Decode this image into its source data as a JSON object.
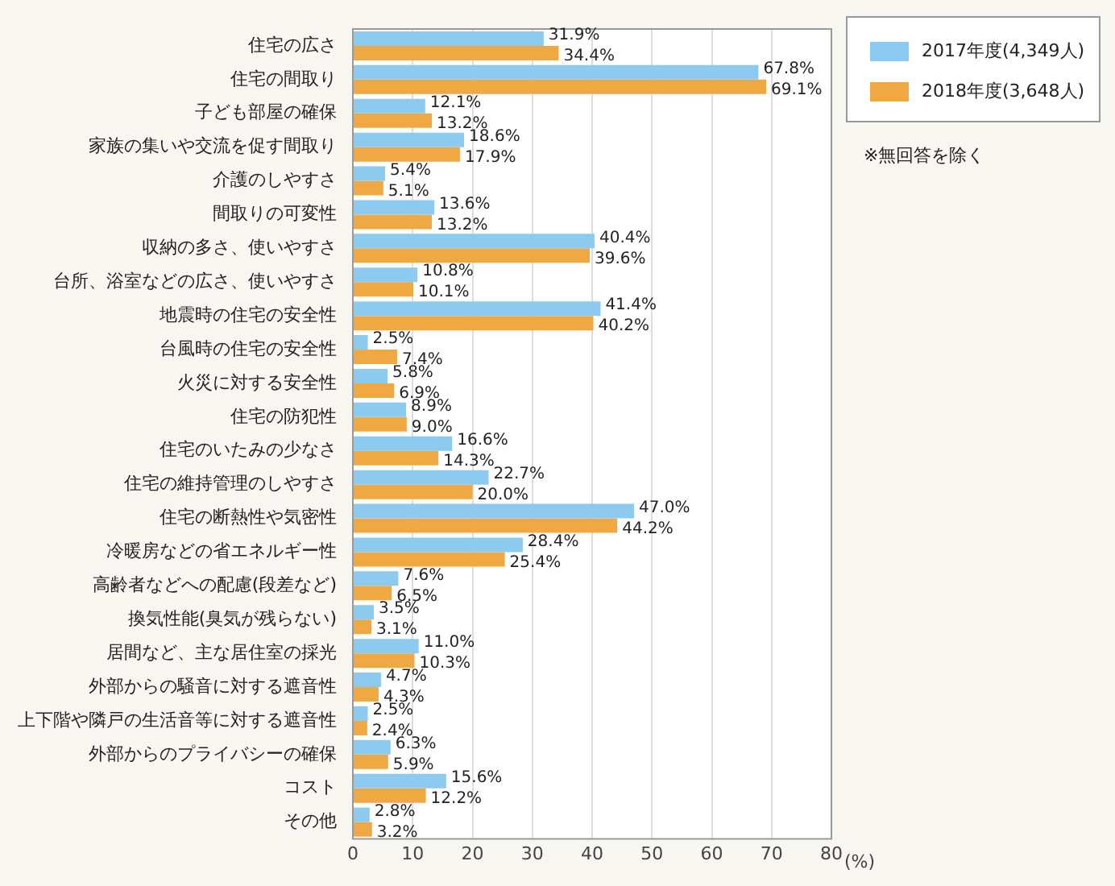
{
  "chart_data": {
    "type": "bar",
    "orientation": "horizontal",
    "xlabel": "(%)",
    "categories": [
      "住宅の広さ",
      "住宅の間取り",
      "子ども部屋の確保",
      "家族の集いや交流を促す間取り",
      "介護のしやすさ",
      "間取りの可変性",
      "収納の多さ、使いやすさ",
      "台所、浴室などの広さ、使いやすさ",
      "地震時の住宅の安全性",
      "台風時の住宅の安全性",
      "火災に対する安全性",
      "住宅の防犯性",
      "住宅のいたみの少なさ",
      "住宅の維持管理のしやすさ",
      "住宅の断熱性や気密性",
      "冷暖房などの省エネルギー性",
      "高齢者などへの配慮(段差など)",
      "換気性能(臭気が残らない)",
      "居間など、主な居住室の採光",
      "外部からの騒音に対する遮音性",
      "上下階や隣戸の生活音等に対する遮音性",
      "外部からのプライバシーの確保",
      "コスト",
      "その他"
    ],
    "series": [
      {
        "name": "2017年度(4,349人)",
        "color": "#8ccbef",
        "values": [
          31.9,
          67.8,
          12.1,
          18.6,
          5.4,
          13.6,
          40.4,
          10.8,
          41.4,
          2.5,
          5.8,
          8.9,
          16.6,
          22.7,
          47.0,
          28.4,
          7.6,
          3.5,
          11.0,
          4.7,
          2.5,
          6.3,
          15.6,
          2.8
        ],
        "value_labels": [
          "31.9%",
          "67.8%",
          "12.1%",
          "18.6%",
          "5.4%",
          "13.6%",
          "40.4%",
          "10.8%",
          "41.4%",
          "2.5%",
          "5.8%",
          "8.9%",
          "16.6%",
          "22.7%",
          "47.0%",
          "28.4%",
          "7.6%",
          "3.5%",
          "11.0%",
          "4.7%",
          "2.5%",
          "6.3%",
          "15.6%",
          "2.8%"
        ]
      },
      {
        "name": "2018年度(3,648人)",
        "color": "#f0a843",
        "values": [
          34.4,
          69.1,
          13.2,
          17.9,
          5.1,
          13.2,
          39.6,
          10.1,
          40.2,
          7.4,
          6.9,
          9.0,
          14.3,
          20.0,
          44.2,
          25.4,
          6.5,
          3.1,
          10.3,
          4.3,
          2.4,
          5.9,
          12.2,
          3.2
        ],
        "value_labels": [
          "34.4%",
          "69.1%",
          "13.2%",
          "17.9%",
          "5.1%",
          "13.2%",
          "39.6%",
          "10.1%",
          "40.2%",
          "7.4%",
          "6.9%",
          "9.0%",
          "14.3%",
          "20.0%",
          "44.2%",
          "25.4%",
          "6.5%",
          "3.1%",
          "10.3%",
          "4.3%",
          "2.4%",
          "5.9%",
          "12.2%",
          "3.2%"
        ]
      }
    ],
    "xlim": [
      0,
      80
    ],
    "xticks": [
      0,
      10,
      20,
      30,
      40,
      50,
      60,
      70,
      80
    ],
    "grid": "x",
    "legend": "top right",
    "annotations": [
      "※無回答を除く"
    ]
  }
}
